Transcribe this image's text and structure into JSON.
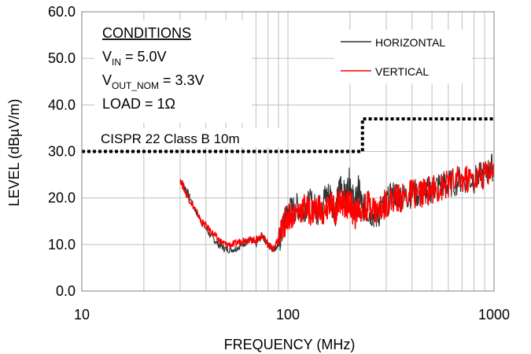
{
  "chart_data": {
    "type": "line",
    "xlabel": "FREQUENCY (MHz)",
    "ylabel": "LEVEL  (dBµV/m)",
    "xscale": "log",
    "xlim": [
      10,
      1000
    ],
    "ylim": [
      0,
      60
    ],
    "xticks": [
      "10",
      "100",
      "1000"
    ],
    "yticks": [
      "0.0",
      "10.0",
      "20.0",
      "30.0",
      "40.0",
      "50.0",
      "60.0"
    ],
    "grid": true,
    "legend_position": "top-right",
    "conditions": {
      "heading": "CONDITIONS",
      "vin": "V",
      "vin_sub": "IN",
      "vin_value": " = 5.0V",
      "vout": "V",
      "vout_sub": "OUT_NOM",
      "vout_value": " = 3.3V",
      "load": "LOAD = 1Ω"
    },
    "limit_label": "CISPR 22 Class B 10m",
    "limit_line": {
      "color": "#000000",
      "style": "dotted",
      "x": [
        10,
        230,
        230,
        1000
      ],
      "y": [
        30,
        30,
        37,
        37
      ]
    },
    "series": [
      {
        "name": "HORIZONTAL",
        "color": "#333333",
        "x": [
          30,
          32,
          35,
          38,
          42,
          46,
          50,
          55,
          60,
          65,
          70,
          75,
          80,
          85,
          90,
          95,
          100,
          110,
          120,
          130,
          140,
          150,
          160,
          170,
          180,
          190,
          200,
          210,
          220,
          230,
          250,
          270,
          300,
          330,
          360,
          400,
          450,
          500,
          550,
          600,
          700,
          800,
          900,
          1000
        ],
        "y": [
          24,
          22,
          18,
          15,
          12,
          10,
          9,
          9,
          10,
          11,
          10,
          12,
          10,
          9,
          10,
          14,
          17,
          18,
          18,
          19,
          17,
          20,
          21,
          17,
          23,
          20,
          24,
          18,
          22,
          18,
          17,
          16,
          19,
          21,
          20,
          21,
          21,
          22,
          23,
          23,
          24,
          24,
          25,
          27
        ]
      },
      {
        "name": "VERTICAL",
        "color": "#ff0000",
        "x": [
          30,
          32,
          35,
          38,
          42,
          46,
          50,
          55,
          60,
          65,
          70,
          75,
          80,
          85,
          90,
          95,
          100,
          110,
          120,
          130,
          140,
          150,
          160,
          170,
          180,
          190,
          200,
          210,
          220,
          230,
          250,
          270,
          300,
          330,
          360,
          400,
          450,
          500,
          550,
          600,
          700,
          800,
          900,
          1000
        ],
        "y": [
          24,
          21,
          18,
          15,
          13,
          11,
          10,
          10,
          11,
          11,
          11,
          12,
          10,
          9,
          11,
          14,
          16,
          17,
          18,
          17,
          18,
          16,
          19,
          17,
          20,
          18,
          19,
          16,
          18,
          17,
          19,
          17,
          19,
          20,
          20,
          21,
          21,
          22,
          22,
          23,
          24,
          24,
          25,
          27
        ]
      }
    ]
  }
}
